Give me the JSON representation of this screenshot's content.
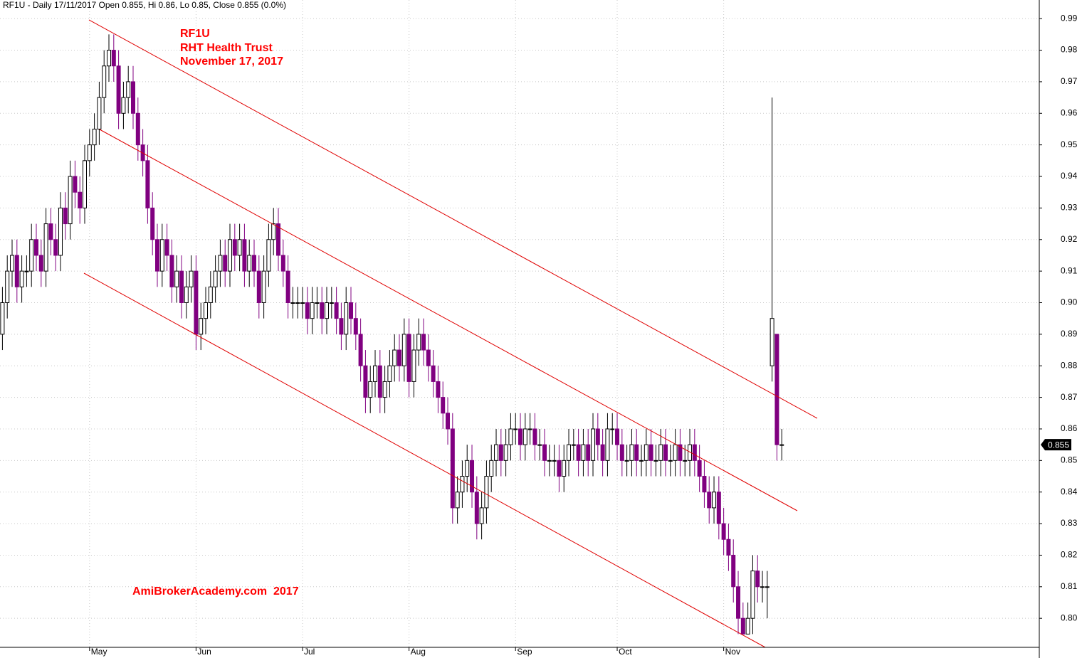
{
  "chart_data": {
    "type": "candlestick",
    "title": "RF1U - Daily 17/11/2017 Open 0.855, Hi 0.86, Lo 0.85, Close 0.855 (0.0%)",
    "annotations": [
      "RF1U",
      "RHT Health Trust",
      "November 17, 2017",
      "AmiBrokerAcademy.com  2017"
    ],
    "up_color": "#ffffff",
    "down_color": "#800080",
    "grid": true,
    "xlim": [
      -0.5,
      214.2
    ],
    "ylim": [
      0.7908,
      0.9959
    ],
    "xticks": [
      {
        "value": 18,
        "label": "May"
      },
      {
        "value": 40,
        "label": "Jun"
      },
      {
        "value": 62,
        "label": "Jul"
      },
      {
        "value": 84,
        "label": "Aug"
      },
      {
        "value": 106,
        "label": "Sep"
      },
      {
        "value": 127,
        "label": "Oct"
      },
      {
        "value": 149,
        "label": "Nov"
      }
    ],
    "yticks": [
      {
        "value": 0.8,
        "label": "0.80"
      },
      {
        "value": 0.81,
        "label": "0.81"
      },
      {
        "value": 0.82,
        "label": "0.82"
      },
      {
        "value": 0.83,
        "label": "0.83"
      },
      {
        "value": 0.84,
        "label": "0.84"
      },
      {
        "value": 0.85,
        "label": "0.85"
      },
      {
        "value": 0.86,
        "label": "0.86"
      },
      {
        "value": 0.87,
        "label": "0.87"
      },
      {
        "value": 0.88,
        "label": "0.88"
      },
      {
        "value": 0.89,
        "label": "0.89"
      },
      {
        "value": 0.9,
        "label": "0.90"
      },
      {
        "value": 0.91,
        "label": "0.91"
      },
      {
        "value": 0.92,
        "label": "0.92"
      },
      {
        "value": 0.93,
        "label": "0.93"
      },
      {
        "value": 0.94,
        "label": "0.94"
      },
      {
        "value": 0.95,
        "label": "0.95"
      },
      {
        "value": 0.96,
        "label": "0.96"
      },
      {
        "value": 0.97,
        "label": "0.97"
      },
      {
        "value": 0.98,
        "label": "0.98"
      },
      {
        "value": 0.99,
        "label": "0.99"
      }
    ],
    "last_value_label": "0.855",
    "open": [
      0.89,
      0.9,
      0.91,
      0.915,
      0.905,
      0.91,
      0.91,
      0.92,
      0.915,
      0.91,
      0.925,
      0.92,
      0.915,
      0.93,
      0.925,
      0.94,
      0.935,
      0.93,
      0.945,
      0.95,
      0.955,
      0.965,
      0.975,
      0.98,
      0.975,
      0.96,
      0.965,
      0.97,
      0.96,
      0.95,
      0.945,
      0.93,
      0.92,
      0.91,
      0.92,
      0.915,
      0.905,
      0.91,
      0.9,
      0.905,
      0.91,
      0.89,
      0.895,
      0.9,
      0.905,
      0.91,
      0.915,
      0.91,
      0.92,
      0.915,
      0.92,
      0.91,
      0.915,
      0.91,
      0.9,
      0.91,
      0.92,
      0.925,
      0.915,
      0.91,
      0.9,
      0.9,
      0.9,
      0.9,
      0.895,
      0.9,
      0.9,
      0.895,
      0.9,
      0.9,
      0.895,
      0.89,
      0.9,
      0.895,
      0.89,
      0.88,
      0.87,
      0.875,
      0.88,
      0.87,
      0.875,
      0.88,
      0.885,
      0.88,
      0.89,
      0.875,
      0.885,
      0.89,
      0.885,
      0.88,
      0.875,
      0.87,
      0.865,
      0.86,
      0.835,
      0.84,
      0.845,
      0.85,
      0.84,
      0.83,
      0.835,
      0.845,
      0.85,
      0.855,
      0.85,
      0.855,
      0.86,
      0.86,
      0.855,
      0.86,
      0.86,
      0.855,
      0.855,
      0.85,
      0.85,
      0.85,
      0.845,
      0.85,
      0.855,
      0.855,
      0.85,
      0.855,
      0.85,
      0.86,
      0.855,
      0.85,
      0.86,
      0.86,
      0.855,
      0.85,
      0.85,
      0.855,
      0.85,
      0.85,
      0.855,
      0.85,
      0.85,
      0.855,
      0.85,
      0.85,
      0.855,
      0.85,
      0.85,
      0.855,
      0.85,
      0.845,
      0.84,
      0.835,
      0.84,
      0.83,
      0.825,
      0.82,
      0.81,
      0.8,
      0.795,
      0.8,
      0.815,
      0.81,
      0.81,
      0.88,
      0.89,
      0.855
    ],
    "high": [
      0.905,
      0.915,
      0.92,
      0.92,
      0.915,
      0.915,
      0.925,
      0.925,
      0.92,
      0.93,
      0.93,
      0.925,
      0.935,
      0.935,
      0.945,
      0.945,
      0.94,
      0.95,
      0.955,
      0.96,
      0.97,
      0.98,
      0.985,
      0.985,
      0.98,
      0.97,
      0.975,
      0.975,
      0.965,
      0.955,
      0.95,
      0.935,
      0.925,
      0.925,
      0.925,
      0.92,
      0.915,
      0.915,
      0.91,
      0.915,
      0.915,
      0.9,
      0.905,
      0.91,
      0.915,
      0.92,
      0.92,
      0.925,
      0.925,
      0.925,
      0.925,
      0.92,
      0.92,
      0.915,
      0.915,
      0.925,
      0.93,
      0.93,
      0.92,
      0.915,
      0.905,
      0.905,
      0.905,
      0.905,
      0.905,
      0.905,
      0.905,
      0.905,
      0.905,
      0.905,
      0.9,
      0.905,
      0.905,
      0.9,
      0.895,
      0.885,
      0.88,
      0.885,
      0.885,
      0.88,
      0.885,
      0.89,
      0.89,
      0.895,
      0.895,
      0.89,
      0.895,
      0.895,
      0.89,
      0.885,
      0.88,
      0.875,
      0.87,
      0.865,
      0.845,
      0.85,
      0.855,
      0.855,
      0.845,
      0.84,
      0.85,
      0.855,
      0.86,
      0.86,
      0.86,
      0.865,
      0.865,
      0.865,
      0.865,
      0.865,
      0.865,
      0.86,
      0.86,
      0.855,
      0.855,
      0.855,
      0.855,
      0.86,
      0.86,
      0.86,
      0.86,
      0.86,
      0.865,
      0.865,
      0.86,
      0.865,
      0.865,
      0.865,
      0.86,
      0.855,
      0.86,
      0.86,
      0.855,
      0.86,
      0.86,
      0.855,
      0.86,
      0.86,
      0.855,
      0.86,
      0.86,
      0.855,
      0.86,
      0.86,
      0.855,
      0.85,
      0.845,
      0.845,
      0.845,
      0.835,
      0.83,
      0.825,
      0.815,
      0.805,
      0.805,
      0.82,
      0.82,
      0.815,
      0.815,
      0.965,
      0.89,
      0.86
    ],
    "low": [
      0.885,
      0.895,
      0.905,
      0.9,
      0.9,
      0.905,
      0.905,
      0.91,
      0.905,
      0.905,
      0.915,
      0.91,
      0.91,
      0.92,
      0.92,
      0.93,
      0.925,
      0.925,
      0.94,
      0.945,
      0.95,
      0.96,
      0.97,
      0.97,
      0.955,
      0.955,
      0.96,
      0.955,
      0.945,
      0.94,
      0.925,
      0.915,
      0.905,
      0.905,
      0.91,
      0.9,
      0.9,
      0.895,
      0.895,
      0.9,
      0.885,
      0.885,
      0.89,
      0.895,
      0.9,
      0.905,
      0.905,
      0.905,
      0.91,
      0.91,
      0.905,
      0.905,
      0.905,
      0.895,
      0.895,
      0.905,
      0.915,
      0.91,
      0.905,
      0.895,
      0.895,
      0.895,
      0.895,
      0.89,
      0.89,
      0.895,
      0.89,
      0.89,
      0.895,
      0.89,
      0.885,
      0.885,
      0.89,
      0.885,
      0.875,
      0.865,
      0.865,
      0.87,
      0.865,
      0.865,
      0.87,
      0.875,
      0.875,
      0.875,
      0.87,
      0.87,
      0.88,
      0.88,
      0.875,
      0.87,
      0.865,
      0.86,
      0.855,
      0.83,
      0.83,
      0.835,
      0.84,
      0.835,
      0.825,
      0.825,
      0.83,
      0.84,
      0.845,
      0.845,
      0.845,
      0.85,
      0.855,
      0.85,
      0.85,
      0.855,
      0.85,
      0.85,
      0.845,
      0.845,
      0.845,
      0.84,
      0.84,
      0.845,
      0.85,
      0.845,
      0.845,
      0.845,
      0.845,
      0.85,
      0.845,
      0.845,
      0.855,
      0.85,
      0.845,
      0.845,
      0.845,
      0.845,
      0.845,
      0.845,
      0.845,
      0.845,
      0.845,
      0.845,
      0.845,
      0.845,
      0.845,
      0.845,
      0.845,
      0.845,
      0.84,
      0.835,
      0.83,
      0.83,
      0.825,
      0.82,
      0.815,
      0.805,
      0.795,
      0.795,
      0.795,
      0.795,
      0.805,
      0.805,
      0.8,
      0.875,
      0.85,
      0.85
    ],
    "close": [
      0.9,
      0.91,
      0.915,
      0.905,
      0.91,
      0.91,
      0.92,
      0.915,
      0.91,
      0.925,
      0.92,
      0.915,
      0.93,
      0.925,
      0.94,
      0.935,
      0.93,
      0.945,
      0.95,
      0.955,
      0.965,
      0.975,
      0.98,
      0.975,
      0.96,
      0.965,
      0.97,
      0.96,
      0.95,
      0.945,
      0.93,
      0.92,
      0.91,
      0.92,
      0.915,
      0.905,
      0.91,
      0.9,
      0.905,
      0.91,
      0.89,
      0.895,
      0.9,
      0.905,
      0.91,
      0.915,
      0.91,
      0.92,
      0.915,
      0.92,
      0.91,
      0.915,
      0.91,
      0.9,
      0.91,
      0.92,
      0.925,
      0.915,
      0.91,
      0.9,
      0.9,
      0.9,
      0.9,
      0.895,
      0.9,
      0.9,
      0.895,
      0.9,
      0.9,
      0.895,
      0.89,
      0.9,
      0.895,
      0.89,
      0.88,
      0.87,
      0.875,
      0.88,
      0.87,
      0.875,
      0.88,
      0.885,
      0.88,
      0.89,
      0.875,
      0.885,
      0.89,
      0.885,
      0.88,
      0.875,
      0.87,
      0.865,
      0.86,
      0.835,
      0.84,
      0.845,
      0.85,
      0.84,
      0.83,
      0.835,
      0.845,
      0.85,
      0.855,
      0.85,
      0.855,
      0.86,
      0.86,
      0.855,
      0.86,
      0.86,
      0.855,
      0.855,
      0.85,
      0.85,
      0.85,
      0.845,
      0.85,
      0.855,
      0.855,
      0.85,
      0.855,
      0.85,
      0.86,
      0.855,
      0.85,
      0.86,
      0.86,
      0.855,
      0.85,
      0.85,
      0.855,
      0.85,
      0.85,
      0.855,
      0.85,
      0.85,
      0.855,
      0.85,
      0.85,
      0.855,
      0.85,
      0.85,
      0.855,
      0.85,
      0.845,
      0.84,
      0.835,
      0.84,
      0.83,
      0.825,
      0.82,
      0.81,
      0.8,
      0.795,
      0.8,
      0.815,
      0.81,
      0.81,
      0.81,
      0.895,
      0.855,
      0.855
    ]
  }
}
